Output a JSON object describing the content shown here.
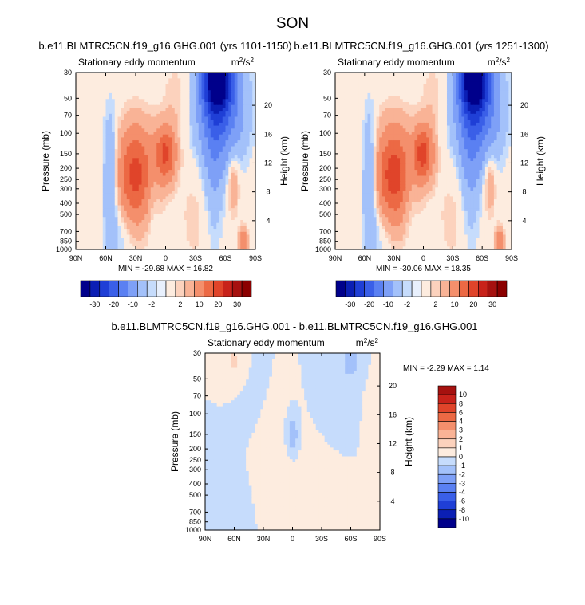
{
  "page": {
    "title": "SON"
  },
  "colors": {
    "palette": [
      "#00008b",
      "#0b1fb4",
      "#1f3fd6",
      "#3a5fe8",
      "#5a80f2",
      "#7ea0f7",
      "#a3c1fa",
      "#c6dcfc",
      "#e8f0fd",
      "#fdecdf",
      "#fcd2bd",
      "#f9b396",
      "#f48f6c",
      "#ec6944",
      "#e0442a",
      "#c8221a",
      "#a6110f",
      "#8b0000"
    ]
  },
  "chart_data": [
    {
      "id": "left",
      "type": "heatmap",
      "title": "b.e11.BLMTRC5CN.f19_g16.GHG.001 (yrs 1101-1150)",
      "left_label": "Stationary eddy momentum",
      "units_main": "m",
      "units_exp": "2",
      "units_mid": "/s",
      "units_exp2": "2",
      "ylabel": "Pressure (mb)",
      "ylabel_right": "Height (km)",
      "x_ticks": [
        "90N",
        "60N",
        "30N",
        "0",
        "30S",
        "60S",
        "90S"
      ],
      "x_tick_values": [
        90,
        60,
        30,
        0,
        -30,
        -60,
        -90
      ],
      "xlim": [
        90,
        -90
      ],
      "y_ticks": [
        "30",
        "50",
        "70",
        "100",
        "150",
        "200",
        "250",
        "300",
        "400",
        "500",
        "700",
        "850",
        "1000"
      ],
      "y_tick_values": [
        30,
        50,
        70,
        100,
        150,
        200,
        250,
        300,
        400,
        500,
        700,
        850,
        1000
      ],
      "ylim": [
        30,
        1000
      ],
      "y_scale": "log",
      "height_ticks": [
        "20",
        "16",
        "12",
        "8",
        "4"
      ],
      "height_tick_values": [
        20,
        16,
        12,
        8,
        4
      ],
      "stats": "MIN = -29.68   MAX = 16.82",
      "min": -29.68,
      "max": 16.82,
      "colorbar": {
        "orientation": "horizontal",
        "labels": [
          "-30",
          "-20",
          "-10",
          "-2",
          "2",
          "10",
          "20",
          "30"
        ],
        "levels": [
          -35,
          -30,
          -25,
          -20,
          -15,
          -10,
          -5,
          -2,
          -1,
          1,
          2,
          5,
          10,
          15,
          20,
          25,
          30,
          35
        ]
      },
      "features": [
        {
          "lat": 30,
          "p": 230,
          "amp": 17,
          "slat": 13,
          "sl": 0.65
        },
        {
          "lat": 0,
          "p": 150,
          "amp": 16,
          "slat": 7,
          "sl": 0.38
        },
        {
          "lat": -52,
          "p": 32,
          "amp": -30,
          "slat": 10,
          "sl": 0.45
        },
        {
          "lat": -55,
          "p": 60,
          "amp": -15,
          "slat": 16,
          "sl": 0.75
        },
        {
          "lat": -48,
          "p": 150,
          "amp": -5,
          "slat": 7,
          "sl": 1.2
        },
        {
          "lat": 55,
          "p": 250,
          "amp": -7,
          "slat": 5,
          "sl": 0.9
        },
        {
          "lat": -68,
          "p": 260,
          "amp": 5,
          "slat": 4,
          "sl": 0.45
        },
        {
          "lat": -78,
          "p": 850,
          "amp": 8,
          "slat": 3,
          "sl": 0.2
        },
        {
          "lat": 14,
          "p": 350,
          "amp": -3,
          "slat": 5,
          "sl": 0.5
        },
        {
          "lat": 45,
          "p": 700,
          "amp": -2.5,
          "slat": 8,
          "sl": 0.5
        },
        {
          "lat": -12,
          "p": 50,
          "amp": 2,
          "slat": 10,
          "sl": 0.5
        },
        {
          "lat": -30,
          "p": 500,
          "amp": 1.5,
          "slat": 12,
          "sl": 0.8
        }
      ]
    },
    {
      "id": "right",
      "type": "heatmap",
      "title": "b.e11.BLMTRC5CN.f19_g16.GHG.001 (yrs 1251-1300)",
      "left_label": "Stationary eddy momentum",
      "units_main": "m",
      "units_exp": "2",
      "units_mid": "/s",
      "units_exp2": "2",
      "ylabel": "Pressure (mb)",
      "ylabel_right": "Height (km)",
      "x_ticks": [
        "90N",
        "60N",
        "30N",
        "0",
        "30S",
        "60S",
        "90S"
      ],
      "x_tick_values": [
        90,
        60,
        30,
        0,
        -30,
        -60,
        -90
      ],
      "xlim": [
        90,
        -90
      ],
      "y_ticks": [
        "30",
        "50",
        "70",
        "100",
        "150",
        "200",
        "250",
        "300",
        "400",
        "500",
        "700",
        "850",
        "1000"
      ],
      "y_tick_values": [
        30,
        50,
        70,
        100,
        150,
        200,
        250,
        300,
        400,
        500,
        700,
        850,
        1000
      ],
      "ylim": [
        30,
        1000
      ],
      "y_scale": "log",
      "height_ticks": [
        "20",
        "16",
        "12",
        "8",
        "4"
      ],
      "height_tick_values": [
        20,
        16,
        12,
        8,
        4
      ],
      "stats": "MIN = -30.06   MAX = 18.35",
      "min": -30.06,
      "max": 18.35,
      "colorbar": {
        "orientation": "horizontal",
        "labels": [
          "-30",
          "-20",
          "-10",
          "-2",
          "2",
          "10",
          "20",
          "30"
        ],
        "levels": [
          -35,
          -30,
          -25,
          -20,
          -15,
          -10,
          -5,
          -2,
          -1,
          1,
          2,
          5,
          10,
          15,
          20,
          25,
          30,
          35
        ]
      },
      "features": [
        {
          "lat": 30,
          "p": 230,
          "amp": 18,
          "slat": 13,
          "sl": 0.65
        },
        {
          "lat": 0,
          "p": 150,
          "amp": 17,
          "slat": 7,
          "sl": 0.38
        },
        {
          "lat": -52,
          "p": 32,
          "amp": -30,
          "slat": 10,
          "sl": 0.45
        },
        {
          "lat": -55,
          "p": 60,
          "amp": -15,
          "slat": 16,
          "sl": 0.75
        },
        {
          "lat": -48,
          "p": 150,
          "amp": -5,
          "slat": 7,
          "sl": 1.2
        },
        {
          "lat": 55,
          "p": 250,
          "amp": -7,
          "slat": 5,
          "sl": 0.9
        },
        {
          "lat": -68,
          "p": 260,
          "amp": 5,
          "slat": 4,
          "sl": 0.45
        },
        {
          "lat": -78,
          "p": 850,
          "amp": 8,
          "slat": 3,
          "sl": 0.2
        },
        {
          "lat": 14,
          "p": 350,
          "amp": -3,
          "slat": 5,
          "sl": 0.5
        },
        {
          "lat": 45,
          "p": 700,
          "amp": -2.5,
          "slat": 8,
          "sl": 0.5
        },
        {
          "lat": -12,
          "p": 50,
          "amp": 2,
          "slat": 10,
          "sl": 0.5
        },
        {
          "lat": -30,
          "p": 500,
          "amp": 1.5,
          "slat": 12,
          "sl": 0.8
        }
      ]
    },
    {
      "id": "diff",
      "type": "heatmap",
      "title": "b.e11.BLMTRC5CN.f19_g16.GHG.001 - b.e11.BLMTRC5CN.f19_g16.GHG.001",
      "left_label": "Stationary eddy momentum",
      "units_main": "m",
      "units_exp": "2",
      "units_mid": "/s",
      "units_exp2": "2",
      "ylabel": "Pressure (mb)",
      "ylabel_right": "Height (km)",
      "x_ticks": [
        "90N",
        "60N",
        "30N",
        "0",
        "30S",
        "60S",
        "90S"
      ],
      "x_tick_values": [
        90,
        60,
        30,
        0,
        -30,
        -60,
        -90
      ],
      "xlim": [
        90,
        -90
      ],
      "y_ticks": [
        "30",
        "50",
        "70",
        "100",
        "150",
        "200",
        "250",
        "300",
        "400",
        "500",
        "700",
        "850",
        "1000"
      ],
      "y_tick_values": [
        30,
        50,
        70,
        100,
        150,
        200,
        250,
        300,
        400,
        500,
        700,
        850,
        1000
      ],
      "ylim": [
        30,
        1000
      ],
      "y_scale": "log",
      "height_ticks": [
        "20",
        "16",
        "12",
        "8",
        "4"
      ],
      "height_tick_values": [
        20,
        16,
        12,
        8,
        4
      ],
      "stats": "MIN = -2.29   MAX =  1.14",
      "min": -2.29,
      "max": 1.14,
      "colorbar": {
        "orientation": "vertical",
        "labels": [
          "10",
          "8",
          "6",
          "4",
          "3",
          "2",
          "1",
          "0",
          "-1",
          "-2",
          "-3",
          "-4",
          "-6",
          "-8",
          "-10"
        ],
        "levels": [
          -12,
          -10,
          -8,
          -6,
          -4,
          -3,
          -2,
          -1,
          0,
          1,
          2,
          3,
          4,
          6,
          8,
          10,
          12
        ]
      },
      "features": [
        {
          "lat": 0,
          "p": 150,
          "amp": -2.29,
          "slat": 4,
          "sl": 0.25
        },
        {
          "lat": 60,
          "p": 35,
          "amp": 1.14,
          "slat": 8,
          "sl": 0.3
        },
        {
          "lat": -60,
          "p": 35,
          "amp": -1.3,
          "slat": 8,
          "sl": 0.3
        },
        {
          "lat": 20,
          "p": 300,
          "amp": 0.5,
          "slat": 14,
          "sl": 0.9
        },
        {
          "lat": -35,
          "p": 450,
          "amp": 0.45,
          "slat": 18,
          "sl": 0.9
        },
        {
          "lat": -45,
          "p": 100,
          "amp": -0.4,
          "slat": 15,
          "sl": 0.8
        },
        {
          "lat": 60,
          "p": 800,
          "amp": -0.35,
          "slat": 15,
          "sl": 0.6
        },
        {
          "lat": -80,
          "p": 200,
          "amp": 0.3,
          "slat": 6,
          "sl": 1.0
        },
        {
          "lat": 40,
          "p": 70,
          "amp": -0.2,
          "slat": 12,
          "sl": 0.7
        }
      ]
    }
  ]
}
